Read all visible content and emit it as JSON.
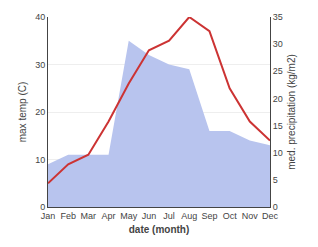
{
  "chart_data": {
    "type": "line",
    "categories": [
      "Jan",
      "Feb",
      "Mar",
      "Apr",
      "May",
      "Jun",
      "Jul",
      "Aug",
      "Sep",
      "Oct",
      "Nov",
      "Dec"
    ],
    "series": [
      {
        "type": "area",
        "color": "#b8c4ee",
        "values": [
          9,
          11,
          11,
          11,
          35,
          32,
          30,
          29,
          16,
          16,
          14,
          13
        ]
      },
      {
        "type": "line",
        "color": "#cc3333",
        "values": [
          5,
          9,
          11,
          18,
          26,
          33,
          35,
          40,
          37,
          25,
          18,
          14
        ]
      }
    ],
    "xlabel": "date (month)",
    "ylabel": "max temp (C)",
    "y2label": "med. precipitation (kg/m2)",
    "ylim": [
      0,
      40
    ],
    "yticks": [
      0,
      10,
      20,
      30,
      40
    ],
    "y2lim": [
      0,
      35
    ],
    "y2ticks": [
      0,
      5,
      10,
      15,
      20,
      25,
      30,
      35
    ],
    "grid": true
  }
}
